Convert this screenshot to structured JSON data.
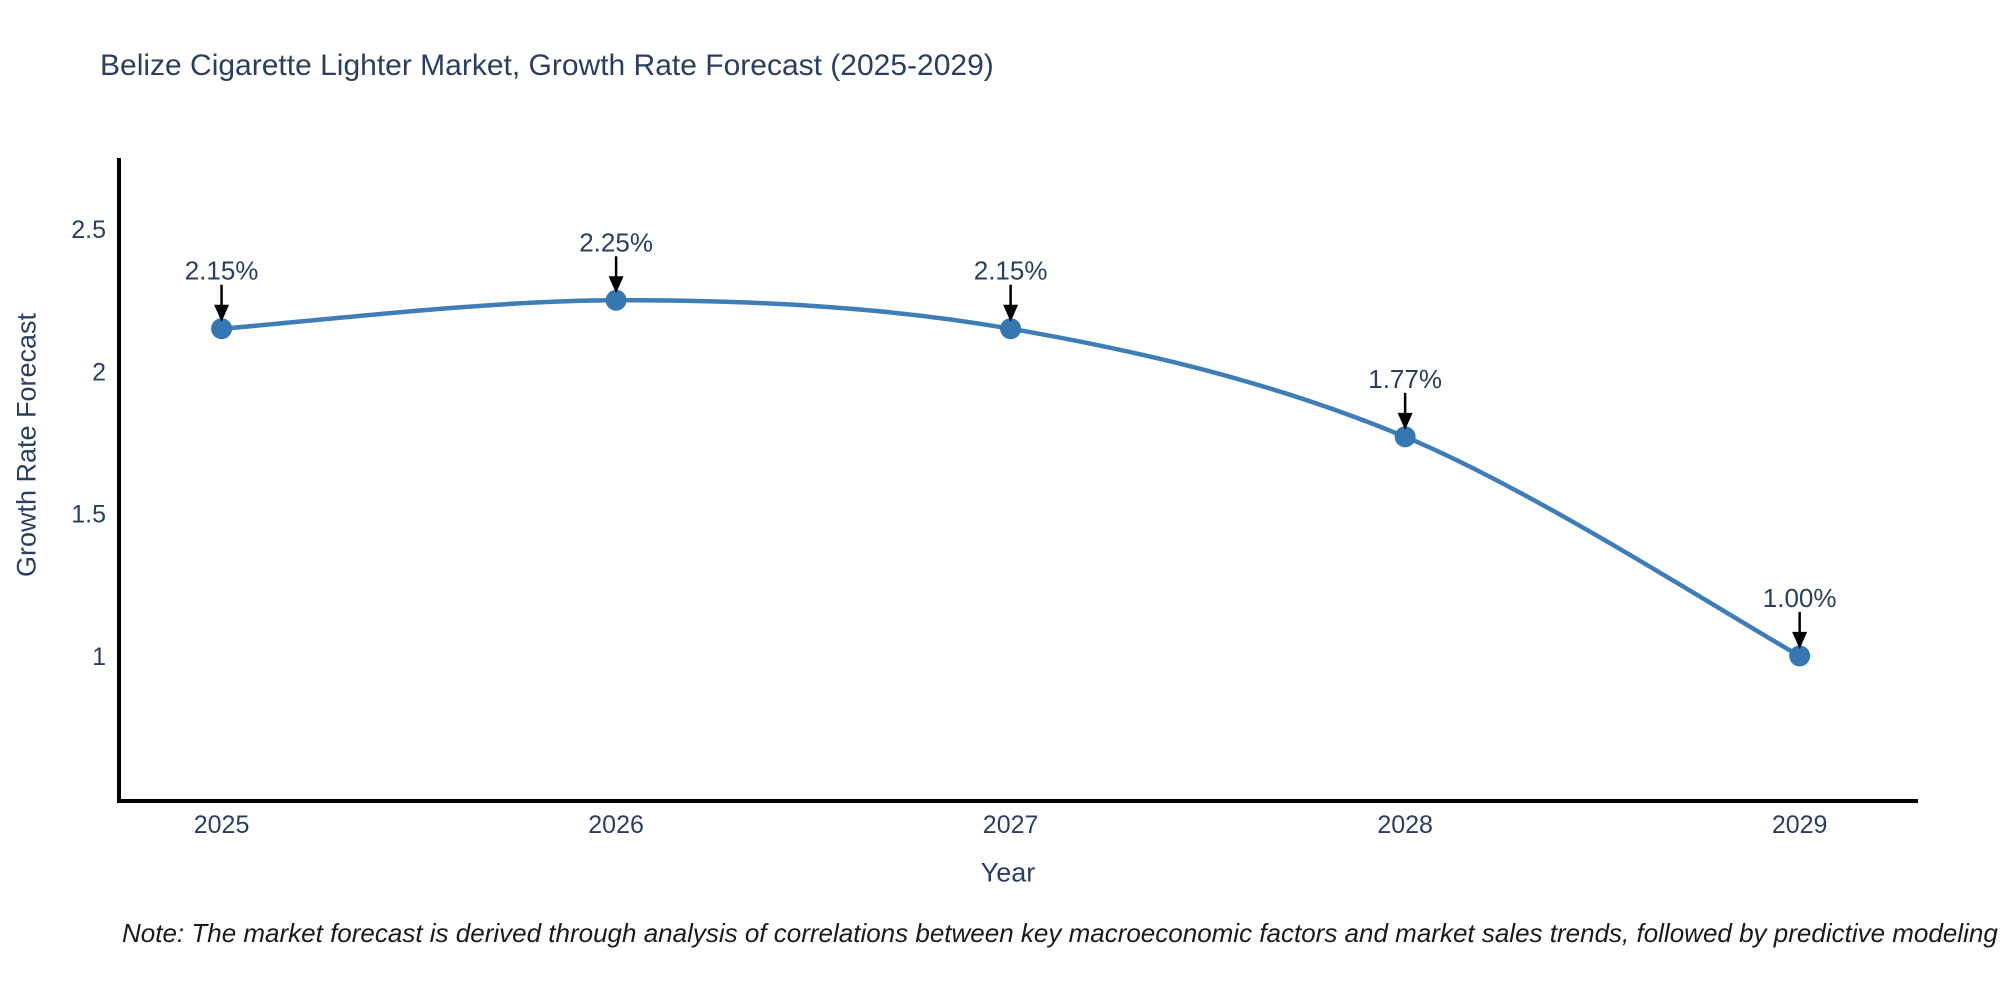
{
  "title": "Belize Cigarette Lighter Market, Growth Rate Forecast (2025-2029)",
  "note": "Note: The market forecast is derived through analysis of correlations between key macroeconomic factors and market sales trends, followed by predictive modeling to project future sales",
  "chart_data": {
    "type": "line",
    "title": "Belize Cigarette Lighter Market, Growth Rate Forecast (2025-2029)",
    "x": [
      2025,
      2026,
      2027,
      2028,
      2029
    ],
    "categories": [
      "2025",
      "2026",
      "2027",
      "2028",
      "2029"
    ],
    "values": [
      2.15,
      2.25,
      2.15,
      1.77,
      1.0
    ],
    "point_labels": [
      "2.15%",
      "2.25%",
      "2.15%",
      "1.77%",
      "1.00%"
    ],
    "xlabel": "Year",
    "ylabel": "Growth Rate Forecast",
    "yticks": [
      2.5,
      2.0,
      1.5,
      1.0
    ],
    "ytick_labels": [
      "2.5",
      "2",
      "1.5",
      "1"
    ],
    "xlim": [
      2024.74,
      2029.3
    ],
    "ylim": [
      0.49,
      2.75
    ],
    "grid": false,
    "legend": "none",
    "smooth": true,
    "line_color": "#3f7db6",
    "marker_color": "#3676b3",
    "axis_color": "#000000",
    "arrow_color": "#000000",
    "text_color": "#2a3f5f"
  }
}
